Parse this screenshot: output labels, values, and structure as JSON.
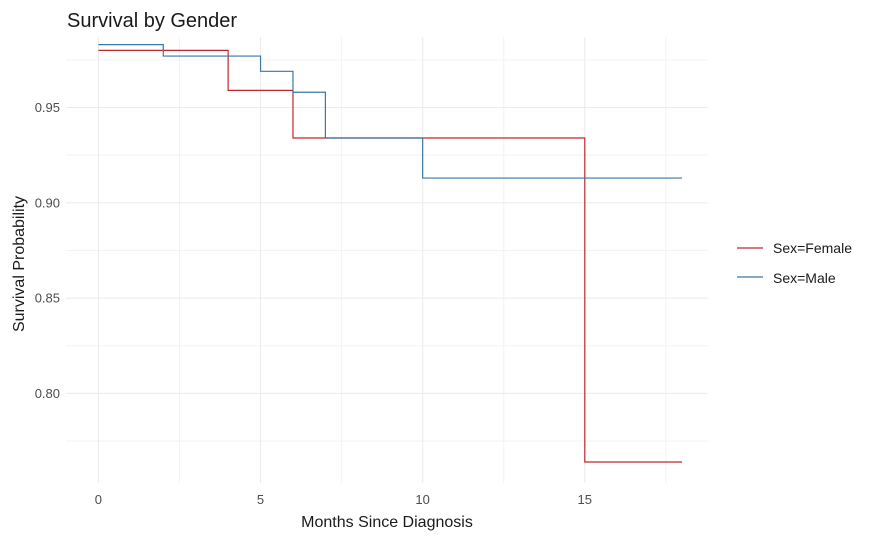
{
  "chart_data": {
    "type": "line",
    "step": true,
    "title": "Survival by Gender",
    "xlabel": "Months Since Diagnosis",
    "ylabel": "Survival Probability",
    "xlim": [
      -1,
      18.8
    ],
    "ylim": [
      0.753,
      0.987
    ],
    "x_ticks": [
      0,
      5,
      10,
      15
    ],
    "x_minor_ticks": [
      2.5,
      7.5,
      12.5,
      17.5
    ],
    "y_ticks": [
      0.8,
      0.85,
      0.9,
      0.95
    ],
    "y_minor_ticks": [
      0.775,
      0.825,
      0.875,
      0.925,
      0.975
    ],
    "grid": true,
    "legend_position": "right",
    "series": [
      {
        "name": "Sex=Female",
        "color": "#c0282e",
        "x": [
          0,
          4,
          6,
          15,
          18
        ],
        "y": [
          0.98,
          0.959,
          0.934,
          0.764,
          0.764
        ]
      },
      {
        "name": "Sex=Male",
        "color": "#3a78a8",
        "x": [
          0,
          2,
          5,
          6,
          7,
          10,
          18
        ],
        "y": [
          0.983,
          0.977,
          0.969,
          0.958,
          0.934,
          0.913,
          0.913
        ]
      }
    ]
  }
}
